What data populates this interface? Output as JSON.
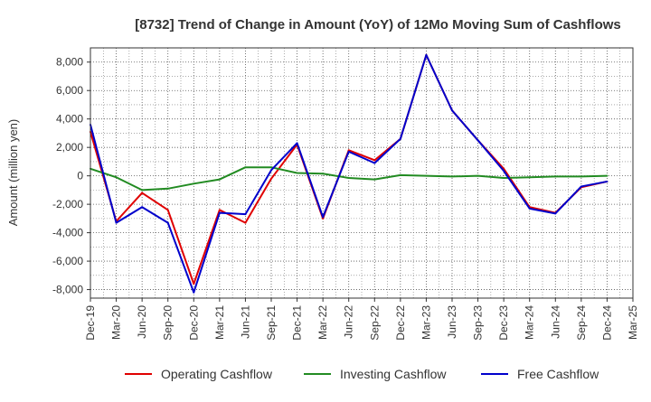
{
  "chart_data": {
    "type": "line",
    "title": "[8732]  Trend of Change in Amount (YoY) of 12Mo Moving Sum of Cashflows",
    "xlabel": "",
    "ylabel": "Amount (million yen)",
    "ylim": [
      -8600,
      9000
    ],
    "grid": true,
    "legend_position": "bottom",
    "yticks": [
      -8000,
      -6000,
      -4000,
      -2000,
      0,
      2000,
      4000,
      6000,
      8000
    ],
    "ytick_labels": [
      "-8,000",
      "-6,000",
      "-4,000",
      "-2,000",
      "0",
      "2,000",
      "4,000",
      "6,000",
      "8,000"
    ],
    "categories": [
      "Dec-19",
      "Mar-20",
      "Jun-20",
      "Sep-20",
      "Dec-20",
      "Mar-21",
      "Jun-21",
      "Sep-21",
      "Dec-21",
      "Mar-22",
      "Jun-22",
      "Sep-22",
      "Dec-22",
      "Mar-23",
      "Jun-23",
      "Sep-23",
      "Dec-23",
      "Mar-24",
      "Jun-24",
      "Sep-24",
      "Dec-24",
      "Mar-25"
    ],
    "series": [
      {
        "name": "Operating Cashflow",
        "color": "#e00000",
        "values": [
          3100,
          -3200,
          -1200,
          -2400,
          -7600,
          -2400,
          -3300,
          -200,
          2200,
          -3000,
          1800,
          1100,
          2600,
          8500,
          4600,
          2500,
          500,
          -2200,
          -2600,
          -800,
          -400,
          null
        ]
      },
      {
        "name": "Investing Cashflow",
        "color": "#228b22",
        "values": [
          500,
          -100,
          -1000,
          -900,
          -550,
          -250,
          600,
          600,
          200,
          150,
          -150,
          -250,
          50,
          0,
          -50,
          0,
          -150,
          -100,
          -50,
          -50,
          0,
          null
        ]
      },
      {
        "name": "Free Cashflow",
        "color": "#0000cc",
        "values": [
          3600,
          -3300,
          -2200,
          -3300,
          -8200,
          -2600,
          -2700,
          400,
          2300,
          -2900,
          1700,
          900,
          2600,
          8500,
          4600,
          2500,
          350,
          -2300,
          -2650,
          -750,
          -400,
          null
        ]
      }
    ]
  }
}
